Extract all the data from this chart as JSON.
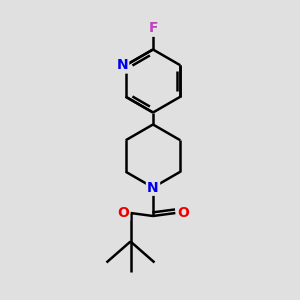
{
  "background_color": "#e0e0e0",
  "bond_color": "#000000",
  "bond_width": 1.8,
  "atom_colors": {
    "F": "#bb44bb",
    "N": "#0000ee",
    "O": "#ee0000",
    "C": "#000000"
  },
  "font_size_atom": 10,
  "figsize": [
    3.0,
    3.0
  ],
  "dpi": 100
}
